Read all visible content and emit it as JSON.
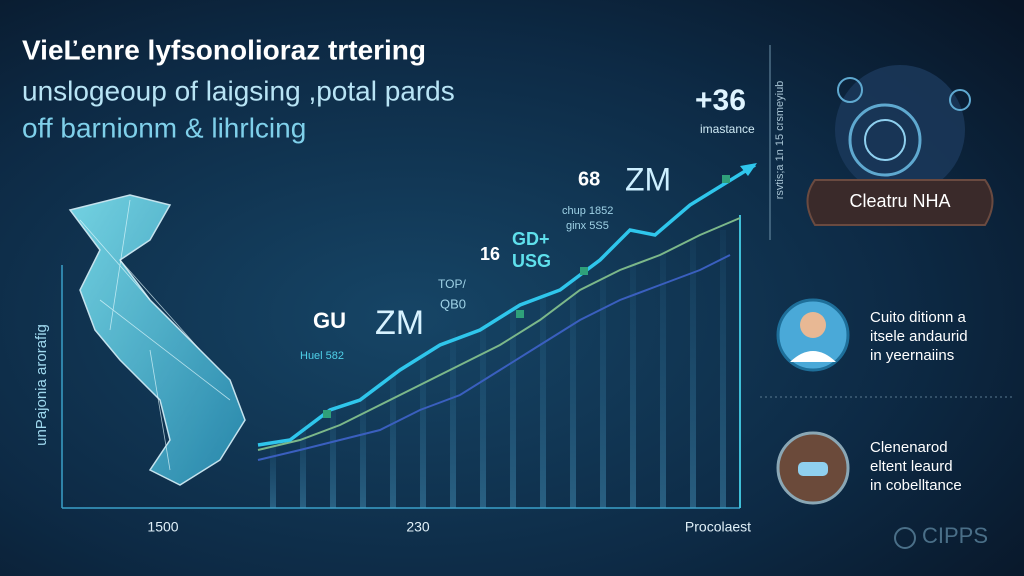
{
  "header": {
    "lines": [
      "VieĽenre lyfsonolioraz trtering",
      "unslogeoup of laigsing ,potal pards",
      "off barnionm & lihrlcing"
    ]
  },
  "graph": {
    "y_axis_label": "unPajonia arorafig",
    "x_labels": [
      "1500",
      "230",
      "Procolaest"
    ],
    "callouts": [
      "+36",
      "imastance",
      "68",
      "ZM",
      "chup 1852",
      "ginx 5S5",
      "16",
      "GD+",
      "USG",
      "TOP/",
      "QB0",
      "GU",
      "ZM",
      "Huel 582"
    ]
  },
  "side_panel": {
    "vertical_text": "rsvtis;a 1n 15 crsmeyiub",
    "badge": "Cleatru NHA"
  },
  "profiles": [
    {
      "lines": [
        "Cuito ditionn a",
        "itsele andaurid",
        "in yeernaiins"
      ]
    },
    {
      "lines": [
        "Clenenarod",
        "eltent leaurd",
        "in cobelltance"
      ]
    }
  ],
  "logo": "CIPPS"
}
